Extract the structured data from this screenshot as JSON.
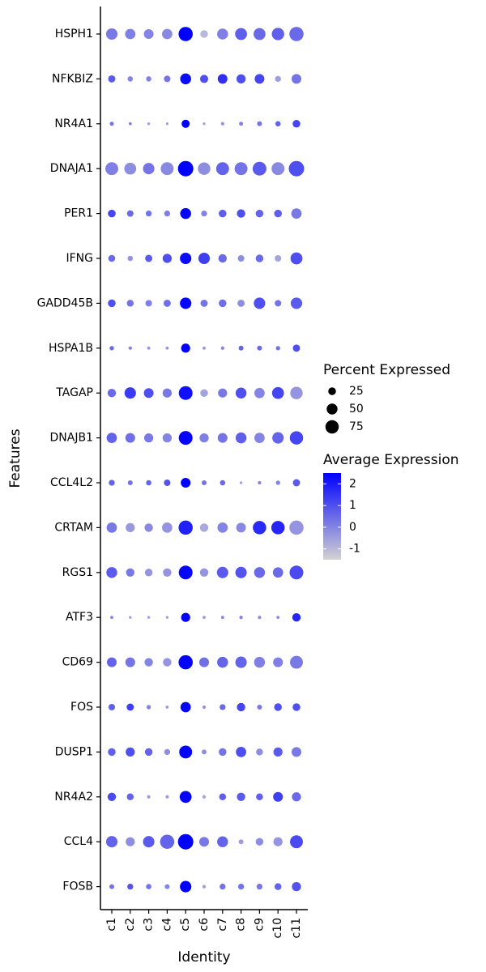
{
  "chart_data": {
    "type": "dotplot",
    "xlabel": "Identity",
    "ylabel": "Features",
    "x_categories": [
      "c1",
      "c2",
      "c3",
      "c4",
      "c5",
      "c6",
      "c7",
      "c8",
      "c9",
      "c10",
      "c11"
    ],
    "features": [
      "HSPH1",
      "NFKBIZ",
      "NR4A1",
      "DNAJA1",
      "PER1",
      "IFNG",
      "GADD45B",
      "HSPA1B",
      "TAGAP",
      "DNAJB1",
      "CCL4L2",
      "CRTAM",
      "RGS1",
      "ATF3",
      "CD69",
      "FOS",
      "DUSP1",
      "NR4A2",
      "CCL4",
      "FOSB"
    ],
    "size_legend": {
      "title": "Percent Expressed",
      "values": [
        25,
        50,
        75
      ],
      "labels": [
        "25",
        "50",
        "75"
      ]
    },
    "color_legend": {
      "title": "Average Expression",
      "range": [
        -1.5,
        2.5
      ],
      "ticks": [
        2,
        1,
        0,
        -1
      ],
      "tick_labels": [
        "2",
        "1",
        "0",
        "-1"
      ],
      "low_color": "#d3d3d3",
      "high_color": "#0000ff"
    },
    "percent": [
      [
        55,
        45,
        40,
        45,
        85,
        25,
        50,
        60,
        60,
        65,
        85
      ],
      [
        22,
        12,
        12,
        18,
        50,
        28,
        40,
        35,
        40,
        15,
        40
      ],
      [
        7,
        4,
        3,
        3,
        28,
        3,
        5,
        7,
        10,
        12,
        25
      ],
      [
        70,
        60,
        55,
        70,
        100,
        65,
        70,
        70,
        80,
        70,
        100
      ],
      [
        25,
        18,
        15,
        15,
        50,
        15,
        25,
        30,
        25,
        25,
        45
      ],
      [
        20,
        12,
        22,
        35,
        55,
        55,
        30,
        18,
        25,
        18,
        60
      ],
      [
        25,
        20,
        18,
        22,
        55,
        22,
        25,
        22,
        55,
        18,
        55
      ],
      [
        8,
        5,
        4,
        4,
        35,
        4,
        5,
        10,
        10,
        8,
        22
      ],
      [
        30,
        55,
        40,
        35,
        80,
        25,
        35,
        50,
        45,
        60,
        65
      ],
      [
        45,
        40,
        35,
        35,
        80,
        35,
        40,
        50,
        45,
        55,
        75
      ],
      [
        15,
        10,
        12,
        18,
        40,
        10,
        12,
        3,
        5,
        8,
        22
      ],
      [
        45,
        35,
        30,
        45,
        85,
        30,
        45,
        40,
        75,
        75,
        85
      ],
      [
        50,
        30,
        25,
        30,
        80,
        30,
        55,
        55,
        50,
        45,
        80
      ],
      [
        4,
        3,
        3,
        3,
        35,
        4,
        4,
        5,
        5,
        4,
        30
      ],
      [
        40,
        40,
        30,
        30,
        85,
        40,
        50,
        55,
        50,
        40,
        70
      ],
      [
        18,
        22,
        8,
        4,
        45,
        5,
        15,
        30,
        10,
        25,
        25
      ],
      [
        25,
        35,
        25,
        15,
        70,
        10,
        25,
        45,
        20,
        35,
        40
      ],
      [
        30,
        20,
        5,
        5,
        60,
        5,
        20,
        30,
        20,
        40,
        35
      ],
      [
        55,
        35,
        55,
        85,
        100,
        40,
        50,
        10,
        25,
        35,
        70
      ],
      [
        10,
        15,
        12,
        10,
        55,
        5,
        15,
        15,
        15,
        20,
        35
      ]
    ],
    "avg_expr": [
      [
        0.2,
        0.1,
        0.0,
        -0.1,
        2.5,
        -1.0,
        0.1,
        0.7,
        0.5,
        0.7,
        0.5
      ],
      [
        0.8,
        0.0,
        0.0,
        0.3,
        2.3,
        1.0,
        1.6,
        1.0,
        1.2,
        -0.5,
        0.3
      ],
      [
        0.3,
        0.0,
        -0.5,
        -0.5,
        2.5,
        -0.5,
        -0.3,
        0.0,
        0.3,
        0.6,
        1.2
      ],
      [
        0.1,
        -0.2,
        0.3,
        -0.1,
        2.5,
        -0.2,
        0.6,
        0.3,
        0.8,
        -0.1,
        1.0
      ],
      [
        1.2,
        0.5,
        0.3,
        0.1,
        2.4,
        0.0,
        0.7,
        1.0,
        0.6,
        0.7,
        0.2
      ],
      [
        0.5,
        -0.3,
        0.8,
        1.0,
        2.3,
        1.3,
        0.5,
        -0.2,
        0.5,
        -0.6,
        1.0
      ],
      [
        1.0,
        0.3,
        0.1,
        0.4,
        2.4,
        0.3,
        0.4,
        -0.2,
        1.0,
        0.3,
        0.8
      ],
      [
        0.5,
        0.0,
        -0.3,
        -0.3,
        2.5,
        -0.3,
        0.0,
        0.6,
        0.5,
        0.3,
        1.0
      ],
      [
        0.5,
        1.4,
        1.0,
        0.2,
        2.2,
        -0.6,
        0.2,
        1.0,
        0.0,
        1.2,
        -0.3
      ],
      [
        0.6,
        0.4,
        0.2,
        0.0,
        2.4,
        0.1,
        0.3,
        0.7,
        0.0,
        0.6,
        1.2
      ],
      [
        0.6,
        0.3,
        0.6,
        0.9,
        2.5,
        0.3,
        0.5,
        -0.5,
        0.0,
        0.0,
        0.8
      ],
      [
        0.2,
        -0.4,
        -0.1,
        -0.3,
        1.9,
        -0.7,
        0.0,
        -0.1,
        1.7,
        1.8,
        -0.3
      ],
      [
        0.8,
        0.2,
        -0.3,
        -0.3,
        2.4,
        -0.3,
        0.8,
        0.9,
        0.5,
        0.5,
        1.1
      ],
      [
        0.0,
        -0.5,
        -0.5,
        -0.5,
        2.5,
        -0.5,
        0.0,
        0.0,
        -0.2,
        -0.2,
        1.8
      ],
      [
        0.6,
        0.3,
        0.0,
        -0.3,
        2.4,
        0.4,
        0.6,
        0.6,
        0.1,
        0.1,
        0.2
      ],
      [
        0.7,
        1.3,
        0.0,
        -0.5,
        2.4,
        -0.3,
        0.5,
        1.2,
        0.2,
        1.0,
        1.0
      ],
      [
        0.7,
        1.0,
        0.6,
        -0.2,
        2.4,
        -0.2,
        0.3,
        1.0,
        -0.2,
        0.8,
        0.2
      ],
      [
        1.1,
        0.6,
        -0.5,
        -0.5,
        2.4,
        -0.6,
        0.7,
        0.8,
        0.7,
        1.3,
        0.5
      ],
      [
        0.6,
        -0.2,
        0.8,
        0.6,
        2.5,
        0.2,
        0.6,
        -0.5,
        -0.2,
        -0.3,
        1.1
      ],
      [
        0.3,
        0.9,
        0.3,
        0.0,
        2.5,
        -0.5,
        0.3,
        0.3,
        0.2,
        0.6,
        0.9
      ]
    ]
  }
}
